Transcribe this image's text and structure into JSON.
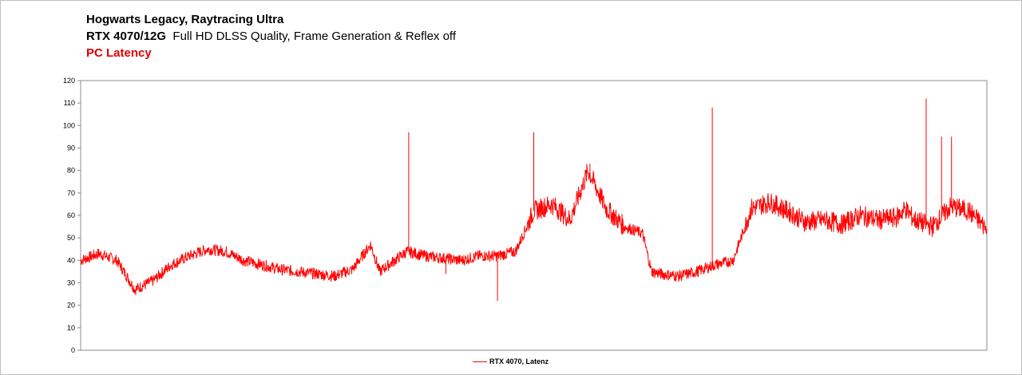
{
  "titles": {
    "line1": "Hogwarts Legacy, Raytracing Ultra",
    "line2_bold": "RTX 4070/12G",
    "line2_rest": "Full HD DLSS Quality, Frame Generation & Reflex off",
    "line3": "PC Latency"
  },
  "colors": {
    "series": "#ff0000",
    "subtitle_accent": "#e00000"
  },
  "chart_data": {
    "type": "line",
    "title": "Hogwarts Legacy, Raytracing Ultra",
    "subtitle": "RTX 4070/12G Full HD DLSS Quality, Frame Generation & Reflex off — PC Latency",
    "xlabel": "",
    "ylabel": "",
    "ylim": [
      0,
      120
    ],
    "yticks": [
      "0",
      "10",
      "20",
      "30",
      "40",
      "50",
      "60",
      "70",
      "80",
      "90",
      "100",
      "110",
      "120"
    ],
    "grid": false,
    "legend_position": "bottom",
    "series": [
      {
        "name": "RTX 4070, Latenz",
        "color": "#ff0000",
        "x": [
          0,
          2,
          4,
          6,
          8,
          10,
          12,
          14,
          16,
          18,
          20,
          22,
          24,
          26,
          28,
          30,
          32,
          33,
          34,
          36,
          38,
          40,
          42,
          44,
          46,
          48,
          50,
          52,
          54,
          56,
          58,
          60,
          62,
          63,
          64,
          66,
          68,
          70,
          72,
          74,
          76,
          78,
          80,
          82,
          84,
          86,
          88,
          90,
          91,
          92,
          94,
          96,
          98,
          100
        ],
        "values": [
          40,
          43,
          40,
          27,
          31,
          38,
          42,
          45,
          44,
          40,
          38,
          36,
          35,
          34,
          33,
          36,
          47,
          35,
          38,
          44,
          42,
          41,
          40,
          42,
          42,
          44,
          62,
          65,
          58,
          80,
          63,
          55,
          52,
          35,
          34,
          33,
          35,
          38,
          40,
          63,
          66,
          62,
          57,
          58,
          56,
          60,
          58,
          59,
          63,
          58,
          55,
          64,
          62,
          54
        ]
      }
    ],
    "spikes": [
      {
        "x": 36.2,
        "y": 97
      },
      {
        "x": 50.0,
        "y": 97
      },
      {
        "x": 56.2,
        "y": 83
      },
      {
        "x": 69.7,
        "y": 108
      },
      {
        "x": 93.3,
        "y": 112
      },
      {
        "x": 95.0,
        "y": 95
      },
      {
        "x": 96.1,
        "y": 95
      },
      {
        "x": 40.3,
        "y": 34
      },
      {
        "x": 46.0,
        "y": 22
      }
    ]
  },
  "legend": {
    "label": "RTX 4070, Latenz"
  }
}
